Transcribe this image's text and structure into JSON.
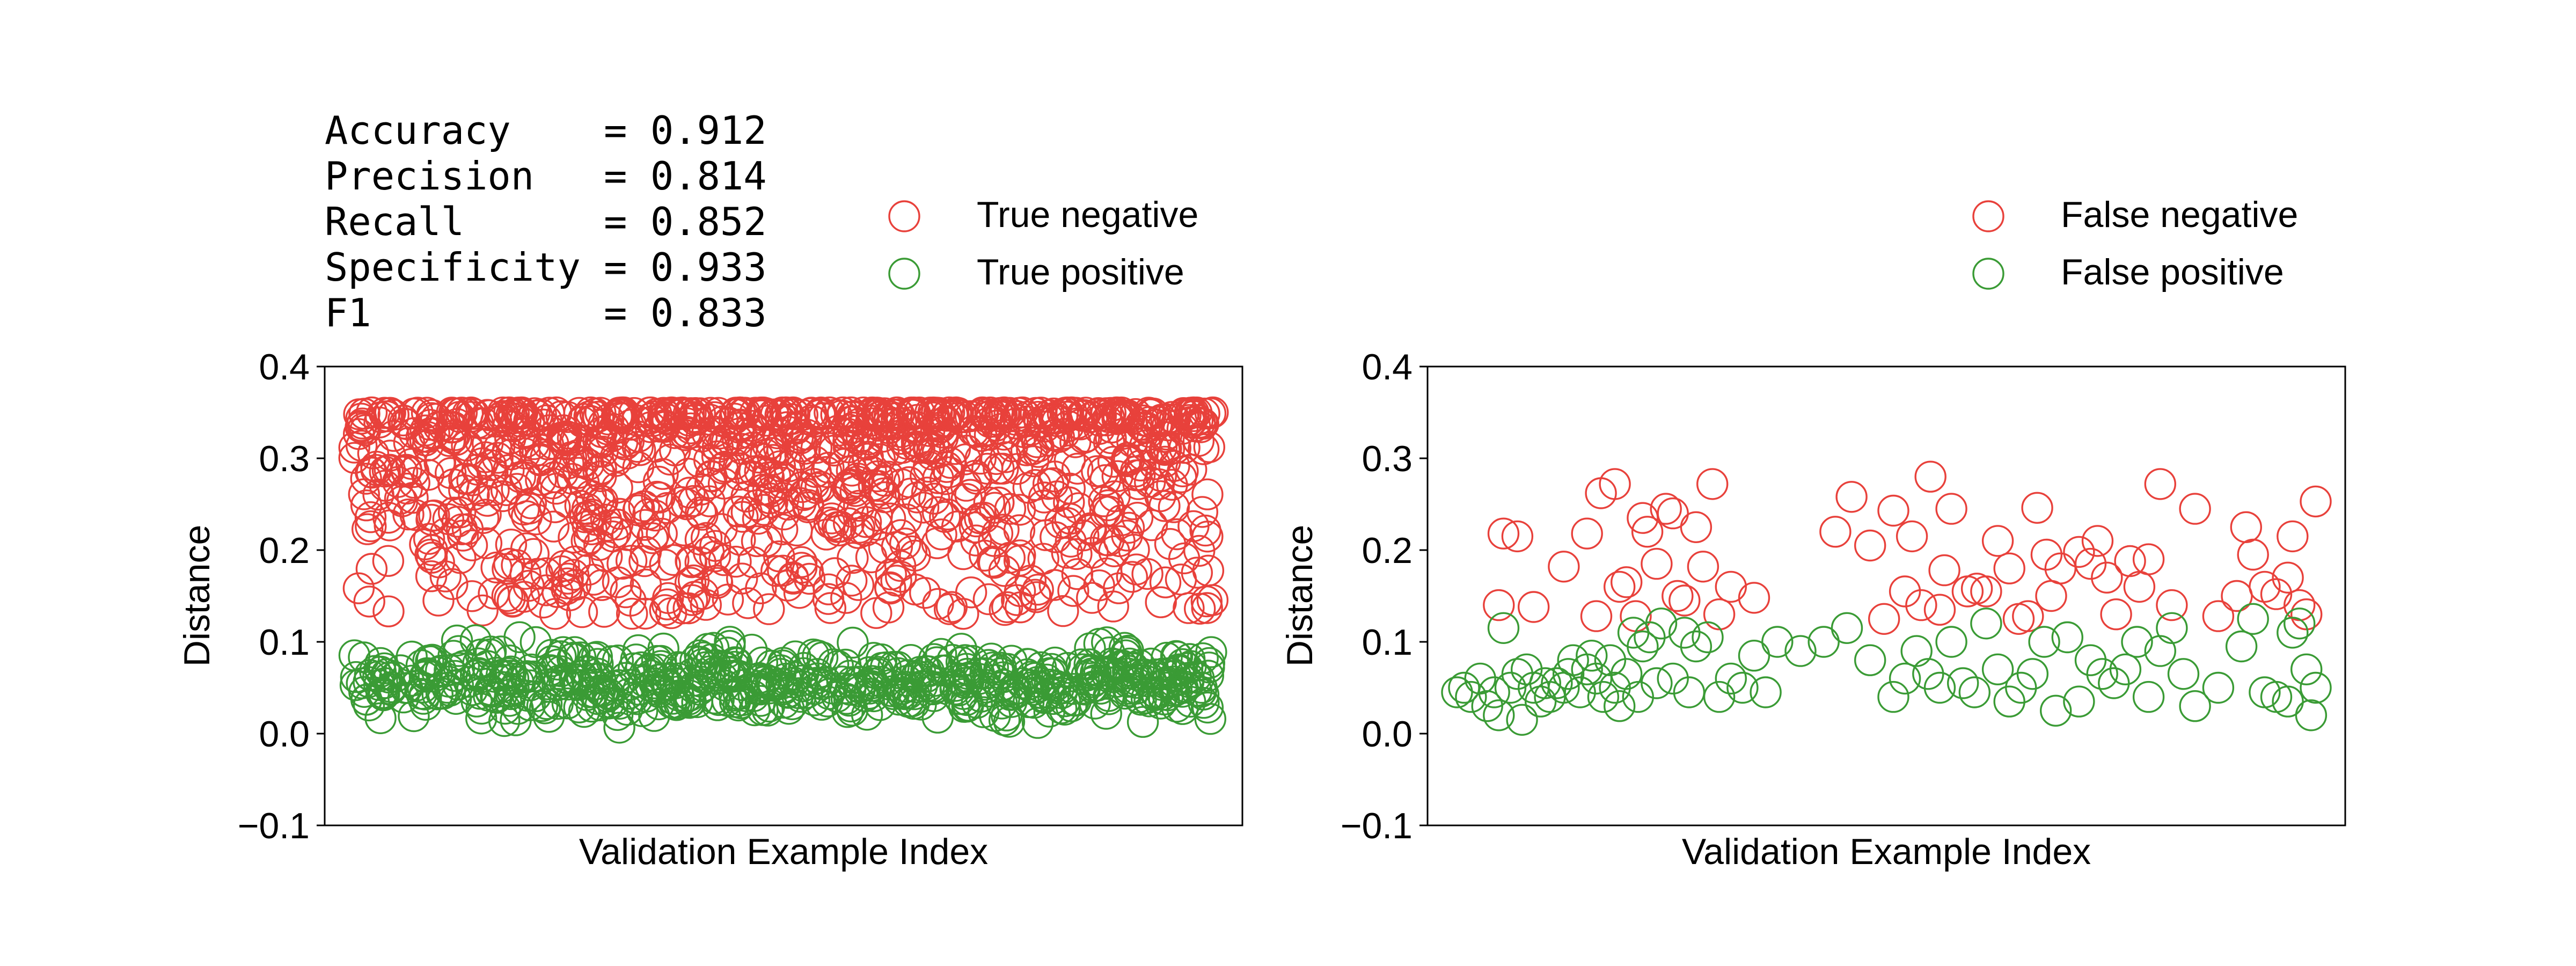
{
  "metrics": {
    "lines": [
      "Accuracy    = 0.912",
      "Precision   = 0.814",
      "Recall      = 0.852",
      "Specificity = 0.933",
      "F1          = 0.833"
    ]
  },
  "chart_data": [
    {
      "type": "scatter",
      "title": "",
      "xlabel": "Validation Example Index",
      "ylabel": "Distance",
      "ylim": [
        -0.1,
        0.4
      ],
      "yticks": [
        -0.1,
        0.0,
        0.1,
        0.2,
        0.3,
        0.4
      ],
      "ytick_labels": [
        "−0.1",
        "0.0",
        "0.1",
        "0.2",
        "0.3",
        "0.4"
      ],
      "xticks": [],
      "grid": false,
      "legend_position": "above-right",
      "series": [
        {
          "name": "True negative",
          "color": "#e8413b",
          "marker": "open-circle",
          "x_range": [
            0,
            1200
          ],
          "n_points": 1100,
          "y_distribution": "values between 0.13 and 0.35, dense from 0.20 to 0.35",
          "y_min": 0.13,
          "y_max": 0.35
        },
        {
          "name": "True positive",
          "color": "#3a9b35",
          "marker": "open-circle",
          "x_range": [
            0,
            1200
          ],
          "n_points": 620,
          "y_distribution": "values between 0.00 and 0.11, dense from 0.02 to 0.09",
          "y_min": 0.0,
          "y_max": 0.11
        }
      ]
    },
    {
      "type": "scatter",
      "title": "",
      "xlabel": "Validation Example Index",
      "ylabel": "Distance",
      "ylim": [
        -0.1,
        0.4
      ],
      "yticks": [
        -0.1,
        0.0,
        0.1,
        0.2,
        0.3,
        0.4
      ],
      "ytick_labels": [
        "−0.1",
        "0.0",
        "0.1",
        "0.2",
        "0.3",
        "0.4"
      ],
      "xticks": [],
      "grid": false,
      "legend_position": "above-right",
      "series": [
        {
          "name": "False negative",
          "color": "#e8413b",
          "marker": "open-circle",
          "x": [
            20,
            22,
            28,
            35,
            48,
            58,
            62,
            64,
            70,
            72,
            75,
            79,
            82,
            84,
            88,
            92,
            95,
            97,
            100,
            105,
            108,
            112,
            115,
            120,
            130,
            165,
            172,
            180,
            186,
            190,
            195,
            198,
            202,
            206,
            210,
            212,
            215,
            222,
            226,
            230,
            235,
            240,
            244,
            248,
            252,
            256,
            258,
            262,
            270,
            275,
            278,
            282,
            286,
            292,
            296,
            300,
            305,
            310,
            320,
            330,
            338,
            342,
            345,
            350,
            355,
            360,
            362,
            365,
            368,
            372
          ],
          "y": [
            0.14,
            0.218,
            0.215,
            0.138,
            0.182,
            0.218,
            0.128,
            0.262,
            0.272,
            0.16,
            0.165,
            0.128,
            0.235,
            0.22,
            0.185,
            0.245,
            0.24,
            0.15,
            0.145,
            0.225,
            0.182,
            0.272,
            0.13,
            0.16,
            0.148,
            0.22,
            0.258,
            0.205,
            0.125,
            0.243,
            0.155,
            0.215,
            0.14,
            0.28,
            0.135,
            0.178,
            0.245,
            0.155,
            0.158,
            0.155,
            0.21,
            0.18,
            0.125,
            0.128,
            0.246,
            0.195,
            0.15,
            0.18,
            0.198,
            0.185,
            0.21,
            0.17,
            0.13,
            0.188,
            0.16,
            0.19,
            0.272,
            0.14,
            0.245,
            0.128,
            0.15,
            0.225,
            0.195,
            0.16,
            0.152,
            0.17,
            0.215,
            0.14,
            0.13,
            0.253
          ],
          "y_min": 0.125,
          "y_max": 0.28
        },
        {
          "name": "False positive",
          "color": "#3a9b35",
          "marker": "open-circle",
          "x": [
            2,
            5,
            8,
            12,
            15,
            18,
            20,
            22,
            25,
            28,
            30,
            32,
            35,
            38,
            40,
            42,
            45,
            48,
            50,
            52,
            55,
            58,
            60,
            62,
            65,
            68,
            70,
            72,
            75,
            78,
            80,
            82,
            85,
            88,
            90,
            95,
            100,
            102,
            105,
            110,
            115,
            120,
            125,
            130,
            135,
            140,
            150,
            160,
            170,
            180,
            190,
            195,
            200,
            205,
            210,
            215,
            220,
            225,
            230,
            235,
            240,
            245,
            250,
            255,
            260,
            265,
            270,
            275,
            280,
            285,
            290,
            295,
            300,
            305,
            310,
            315,
            320,
            330,
            340,
            345,
            350,
            355,
            360,
            362,
            365,
            368,
            370,
            372
          ],
          "y": [
            0.045,
            0.05,
            0.04,
            0.06,
            0.03,
            0.045,
            0.02,
            0.115,
            0.05,
            0.065,
            0.015,
            0.07,
            0.05,
            0.035,
            0.055,
            0.04,
            0.055,
            0.05,
            0.065,
            0.08,
            0.045,
            0.07,
            0.085,
            0.06,
            0.04,
            0.08,
            0.05,
            0.03,
            0.065,
            0.11,
            0.04,
            0.095,
            0.105,
            0.055,
            0.12,
            0.06,
            0.11,
            0.045,
            0.095,
            0.105,
            0.04,
            0.06,
            0.05,
            0.085,
            0.045,
            0.1,
            0.09,
            0.1,
            0.115,
            0.08,
            0.04,
            0.06,
            0.09,
            0.065,
            0.05,
            0.1,
            0.055,
            0.045,
            0.12,
            0.07,
            0.035,
            0.05,
            0.065,
            0.1,
            0.025,
            0.105,
            0.035,
            0.08,
            0.065,
            0.055,
            0.07,
            0.1,
            0.04,
            0.09,
            0.115,
            0.065,
            0.03,
            0.05,
            0.095,
            0.125,
            0.045,
            0.04,
            0.035,
            0.11,
            0.12,
            0.07,
            0.02,
            0.05
          ],
          "y_min": 0.015,
          "y_max": 0.125
        }
      ]
    }
  ]
}
